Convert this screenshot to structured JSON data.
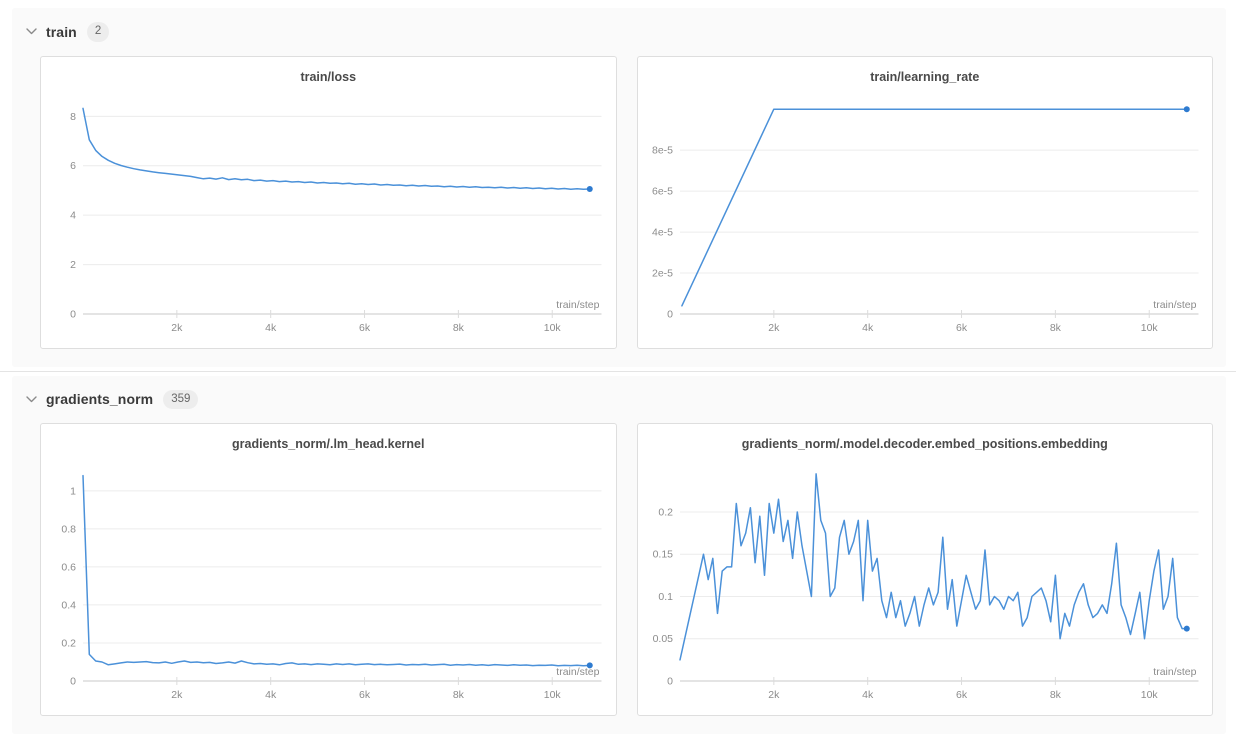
{
  "page": {
    "background": "#ffffff",
    "section_background": "#fafafa",
    "accent_color": "#4b91d9",
    "endpoint_color": "#2e7bd0",
    "gridline_color": "#ececec",
    "axis_color": "#c9c9c9",
    "tick_label_color": "#8c8c8c"
  },
  "sections": [
    {
      "label": "train",
      "count": "2",
      "chart_indexes": [
        0,
        1
      ]
    },
    {
      "label": "gradients_norm",
      "count": "359",
      "chart_indexes": [
        2,
        3
      ]
    }
  ],
  "chart_data": [
    {
      "type": "line",
      "title": "train/loss",
      "xlabel": "train/step",
      "ylabel": "",
      "grid": true,
      "legend": "none",
      "xlim": [
        0,
        11050
      ],
      "ylim": [
        0,
        8.62
      ],
      "xticks": [
        2000,
        4000,
        6000,
        8000,
        10000
      ],
      "xtick_labels": [
        "2k",
        "4k",
        "6k",
        "8k",
        "10k"
      ],
      "yticks": [
        0,
        2,
        4,
        6,
        8
      ],
      "ytick_labels": [
        "0",
        "2",
        "4",
        "6",
        "8"
      ],
      "end_marker": true,
      "x": [
        0,
        135,
        270,
        405,
        540,
        675,
        810,
        945,
        1080,
        1215,
        1350,
        1485,
        1620,
        1755,
        1890,
        2025,
        2160,
        2295,
        2430,
        2565,
        2700,
        2835,
        2970,
        3105,
        3240,
        3375,
        3510,
        3645,
        3780,
        3915,
        4050,
        4185,
        4320,
        4455,
        4590,
        4725,
        4860,
        4995,
        5130,
        5265,
        5400,
        5535,
        5670,
        5805,
        5940,
        6075,
        6210,
        6345,
        6480,
        6615,
        6750,
        6885,
        7020,
        7155,
        7290,
        7425,
        7560,
        7695,
        7830,
        7965,
        8100,
        8235,
        8370,
        8505,
        8640,
        8775,
        8910,
        9045,
        9180,
        9315,
        9450,
        9585,
        9720,
        9855,
        9990,
        10125,
        10260,
        10395,
        10530,
        10665,
        10800
      ],
      "y": [
        8.32,
        7.05,
        6.62,
        6.38,
        6.22,
        6.1,
        6.01,
        5.94,
        5.88,
        5.83,
        5.79,
        5.75,
        5.72,
        5.69,
        5.66,
        5.63,
        5.6,
        5.57,
        5.52,
        5.47,
        5.5,
        5.46,
        5.51,
        5.44,
        5.47,
        5.43,
        5.45,
        5.4,
        5.42,
        5.38,
        5.4,
        5.36,
        5.38,
        5.34,
        5.36,
        5.32,
        5.34,
        5.3,
        5.32,
        5.29,
        5.3,
        5.27,
        5.29,
        5.25,
        5.27,
        5.24,
        5.26,
        5.22,
        5.24,
        5.21,
        5.22,
        5.19,
        5.21,
        5.18,
        5.2,
        5.17,
        5.18,
        5.15,
        5.17,
        5.14,
        5.16,
        5.13,
        5.15,
        5.12,
        5.13,
        5.11,
        5.13,
        5.1,
        5.12,
        5.09,
        5.11,
        5.08,
        5.1,
        5.07,
        5.09,
        5.06,
        5.08,
        5.05,
        5.07,
        5.05,
        5.06
      ]
    },
    {
      "type": "line",
      "title": "train/learning_rate",
      "xlabel": "train/step",
      "ylabel": "",
      "grid": true,
      "legend": "none",
      "xlim": [
        0,
        11050
      ],
      "ylim": [
        0,
        0.000104
      ],
      "xticks": [
        2000,
        4000,
        6000,
        8000,
        10000
      ],
      "xtick_labels": [
        "2k",
        "4k",
        "6k",
        "8k",
        "10k"
      ],
      "yticks": [
        0,
        2e-05,
        4e-05,
        6e-05,
        8e-05
      ],
      "ytick_labels": [
        "0",
        "2e-5",
        "4e-5",
        "6e-5",
        "8e-5"
      ],
      "end_marker": true,
      "x": [
        40,
        2000,
        10800
      ],
      "y": [
        4e-06,
        0.0001,
        0.0001
      ]
    },
    {
      "type": "line",
      "title": "gradients_norm/.lm_head.kernel",
      "xlabel": "train/step",
      "ylabel": "",
      "grid": true,
      "legend": "none",
      "xlim": [
        0,
        11050
      ],
      "ylim": [
        0,
        1.12
      ],
      "xticks": [
        2000,
        4000,
        6000,
        8000,
        10000
      ],
      "xtick_labels": [
        "2k",
        "4k",
        "6k",
        "8k",
        "10k"
      ],
      "yticks": [
        0,
        0.2,
        0.4,
        0.6,
        0.8,
        1
      ],
      "ytick_labels": [
        "0",
        "0.2",
        "0.4",
        "0.6",
        "0.8",
        "1"
      ],
      "end_marker": true,
      "x": [
        0,
        135,
        270,
        405,
        540,
        675,
        810,
        945,
        1080,
        1215,
        1350,
        1485,
        1620,
        1755,
        1890,
        2025,
        2160,
        2295,
        2430,
        2565,
        2700,
        2835,
        2970,
        3105,
        3240,
        3375,
        3510,
        3645,
        3780,
        3915,
        4050,
        4185,
        4320,
        4455,
        4590,
        4725,
        4860,
        4995,
        5130,
        5265,
        5400,
        5535,
        5670,
        5805,
        5940,
        6075,
        6210,
        6345,
        6480,
        6615,
        6750,
        6885,
        7020,
        7155,
        7290,
        7425,
        7560,
        7695,
        7830,
        7965,
        8100,
        8235,
        8370,
        8505,
        8640,
        8775,
        8910,
        9045,
        9180,
        9315,
        9450,
        9585,
        9720,
        9855,
        9990,
        10125,
        10260,
        10395,
        10530,
        10665,
        10800
      ],
      "y": [
        1.08,
        0.14,
        0.105,
        0.1,
        0.085,
        0.09,
        0.095,
        0.1,
        0.098,
        0.1,
        0.102,
        0.097,
        0.095,
        0.1,
        0.093,
        0.1,
        0.105,
        0.098,
        0.1,
        0.096,
        0.098,
        0.092,
        0.095,
        0.1,
        0.094,
        0.105,
        0.096,
        0.09,
        0.092,
        0.088,
        0.09,
        0.085,
        0.092,
        0.095,
        0.088,
        0.09,
        0.086,
        0.09,
        0.088,
        0.085,
        0.09,
        0.087,
        0.09,
        0.085,
        0.088,
        0.09,
        0.086,
        0.088,
        0.085,
        0.087,
        0.089,
        0.084,
        0.087,
        0.085,
        0.088,
        0.084,
        0.086,
        0.088,
        0.083,
        0.086,
        0.084,
        0.087,
        0.083,
        0.085,
        0.082,
        0.086,
        0.084,
        0.082,
        0.085,
        0.083,
        0.084,
        0.081,
        0.083,
        0.082,
        0.084,
        0.08,
        0.082,
        0.081,
        0.083,
        0.08,
        0.082
      ]
    },
    {
      "type": "line",
      "title": "gradients_norm/.model.decoder.embed_positions.embedding",
      "xlabel": "train/step",
      "ylabel": "",
      "grid": true,
      "legend": "none",
      "xlim": [
        0,
        11050
      ],
      "ylim": [
        0,
        0.252
      ],
      "xticks": [
        2000,
        4000,
        6000,
        8000,
        10000
      ],
      "xtick_labels": [
        "2k",
        "4k",
        "6k",
        "8k",
        "10k"
      ],
      "yticks": [
        0,
        0.05,
        0.1,
        0.15,
        0.2
      ],
      "ytick_labels": [
        "0",
        "0.05",
        "0.1",
        "0.15",
        "0.2"
      ],
      "end_marker": true,
      "x": [
        0,
        100,
        200,
        300,
        400,
        500,
        600,
        700,
        800,
        900,
        1000,
        1100,
        1200,
        1300,
        1400,
        1500,
        1600,
        1700,
        1800,
        1900,
        2000,
        2100,
        2200,
        2300,
        2400,
        2500,
        2600,
        2700,
        2800,
        2900,
        3000,
        3100,
        3200,
        3300,
        3400,
        3500,
        3600,
        3700,
        3800,
        3900,
        4000,
        4100,
        4200,
        4300,
        4400,
        4500,
        4600,
        4700,
        4800,
        4900,
        5000,
        5100,
        5200,
        5300,
        5400,
        5500,
        5600,
        5700,
        5800,
        5900,
        6000,
        6100,
        6200,
        6300,
        6400,
        6500,
        6600,
        6700,
        6800,
        6900,
        7000,
        7100,
        7200,
        7300,
        7400,
        7500,
        7600,
        7700,
        7800,
        7900,
        8000,
        8100,
        8200,
        8300,
        8400,
        8500,
        8600,
        8700,
        8800,
        8900,
        9000,
        9100,
        9200,
        9300,
        9400,
        9500,
        9600,
        9700,
        9800,
        9900,
        10000,
        10100,
        10200,
        10300,
        10400,
        10500,
        10600,
        10700,
        10800
      ],
      "y": [
        0.025,
        0.05,
        0.075,
        0.1,
        0.125,
        0.15,
        0.12,
        0.145,
        0.08,
        0.13,
        0.135,
        0.135,
        0.21,
        0.16,
        0.175,
        0.205,
        0.14,
        0.195,
        0.125,
        0.21,
        0.175,
        0.215,
        0.165,
        0.19,
        0.145,
        0.2,
        0.16,
        0.13,
        0.1,
        0.245,
        0.19,
        0.175,
        0.1,
        0.11,
        0.17,
        0.19,
        0.15,
        0.165,
        0.19,
        0.095,
        0.19,
        0.13,
        0.145,
        0.095,
        0.075,
        0.105,
        0.075,
        0.095,
        0.065,
        0.08,
        0.1,
        0.065,
        0.09,
        0.11,
        0.09,
        0.105,
        0.17,
        0.085,
        0.12,
        0.065,
        0.095,
        0.125,
        0.105,
        0.085,
        0.095,
        0.155,
        0.09,
        0.1,
        0.095,
        0.085,
        0.1,
        0.095,
        0.105,
        0.065,
        0.075,
        0.1,
        0.105,
        0.11,
        0.095,
        0.07,
        0.125,
        0.05,
        0.08,
        0.065,
        0.09,
        0.105,
        0.115,
        0.09,
        0.075,
        0.08,
        0.09,
        0.08,
        0.115,
        0.163,
        0.09,
        0.075,
        0.055,
        0.08,
        0.105,
        0.05,
        0.095,
        0.13,
        0.155,
        0.085,
        0.1,
        0.145,
        0.075,
        0.062,
        0.062
      ]
    }
  ]
}
